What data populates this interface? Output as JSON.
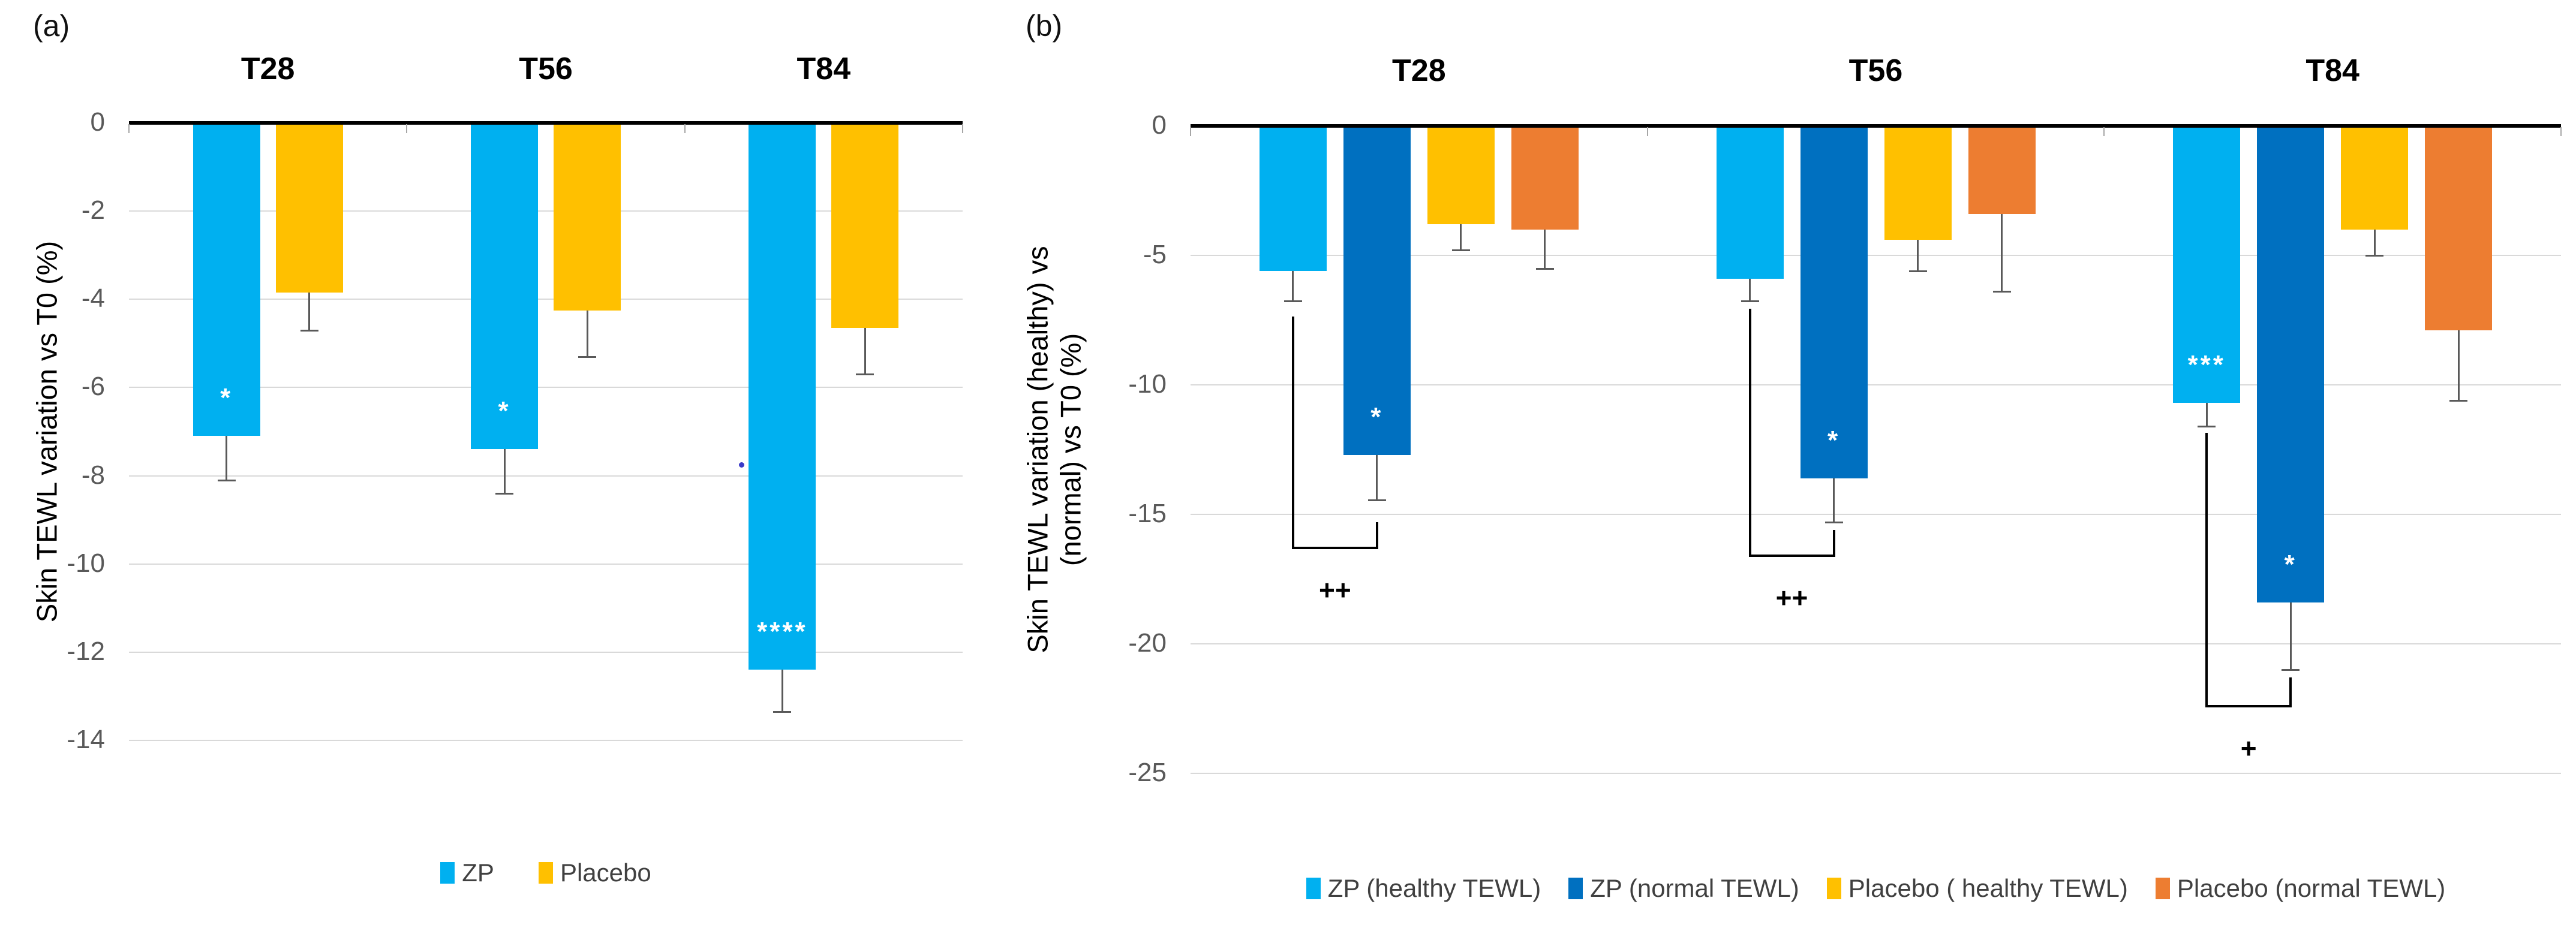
{
  "chart_data": [
    {
      "panel_label": "(a)",
      "type": "bar",
      "title": "",
      "ylabel_lines": [
        "Skin TEWL variation vs T0 (%)",
        ""
      ],
      "xlabel": "",
      "ylim": [
        0,
        -14
      ],
      "grid": true,
      "legend_position": "bottom",
      "yticks": [
        {
          "label": "0",
          "value": 0
        },
        {
          "label": "-2",
          "value": -2
        },
        {
          "label": "-4",
          "value": -4
        },
        {
          "label": "-6",
          "value": -6
        },
        {
          "label": "-8",
          "value": -8
        },
        {
          "label": "-10",
          "value": -10
        },
        {
          "label": "-12",
          "value": -12
        },
        {
          "label": "-14",
          "value": -14
        }
      ],
      "categories": [
        "T28",
        "T56",
        "T84"
      ],
      "series": [
        {
          "name": "ZP",
          "color": "#00B0F0",
          "values": [
            -7.1,
            -7.4,
            -12.4
          ],
          "errors": [
            1.0,
            1.0,
            0.95
          ],
          "sig": [
            "*",
            "*",
            "****"
          ]
        },
        {
          "name": "Placebo",
          "color": "#FFC000",
          "values": [
            -3.85,
            -4.25,
            -4.65
          ],
          "errors": [
            0.85,
            1.05,
            1.05
          ],
          "sig": [
            "",
            "",
            ""
          ]
        }
      ],
      "brackets": [],
      "stray_dot": {
        "category_index": 2,
        "value": -7.75
      },
      "colors": {
        "gridline": "#D9D9D9",
        "axis": "#000000",
        "error_bar": "#595959",
        "tick_text": "#595959",
        "sig_text": "#FFFFFF"
      }
    },
    {
      "panel_label": "(b)",
      "type": "bar",
      "title": "",
      "ylabel_lines": [
        "Skin TEWL variation (healthy) vs",
        "(normal) vs T0 (%)"
      ],
      "xlabel": "",
      "ylim": [
        0,
        -25
      ],
      "grid": true,
      "legend_position": "bottom",
      "yticks": [
        {
          "label": "0",
          "value": 0
        },
        {
          "label": "-5",
          "value": -5
        },
        {
          "label": "-10",
          "value": -10
        },
        {
          "label": "-15",
          "value": -15
        },
        {
          "label": "-20",
          "value": -20
        },
        {
          "label": "-25",
          "value": -25
        }
      ],
      "categories": [
        "T28",
        "T56",
        "T84"
      ],
      "series": [
        {
          "name": "ZP (healthy TEWL)",
          "color": "#00B0F0",
          "values": [
            -5.6,
            -5.9,
            -10.7
          ],
          "errors": [
            1.15,
            0.85,
            0.9
          ],
          "sig": [
            "",
            "",
            "***"
          ]
        },
        {
          "name": "ZP (normal TEWL)",
          "color": "#0070C0",
          "values": [
            -12.7,
            -13.6,
            -18.4
          ],
          "errors": [
            1.75,
            1.7,
            2.6
          ],
          "sig": [
            "*",
            "*",
            "*"
          ]
        },
        {
          "name": "Placebo ( healthy TEWL)",
          "color": "#FFC000",
          "values": [
            -3.8,
            -4.4,
            -4.0
          ],
          "errors": [
            1.0,
            1.2,
            1.0
          ],
          "sig": [
            "",
            "",
            ""
          ]
        },
        {
          "name": "Placebo (normal TEWL)",
          "color": "#ED7D31",
          "values": [
            -4.0,
            -3.4,
            -7.9
          ],
          "errors": [
            1.5,
            3.0,
            2.7
          ],
          "sig": [
            "",
            "",
            ""
          ]
        }
      ],
      "brackets": [
        {
          "category_index": 0,
          "from_series": 0,
          "to_series": 1,
          "from_value": -7.35,
          "to_value": -15.3,
          "bottom_value": -16.35,
          "label": "++",
          "label_value": -17.9
        },
        {
          "category_index": 1,
          "from_series": 0,
          "to_series": 1,
          "from_value": -7.05,
          "to_value": -15.6,
          "bottom_value": -16.65,
          "label": "++",
          "label_value": -18.2
        },
        {
          "category_index": 2,
          "from_series": 0,
          "to_series": 1,
          "from_value": -11.85,
          "to_value": -21.3,
          "bottom_value": -22.45,
          "label": "+",
          "label_value": -24.0
        }
      ],
      "stray_dot": null,
      "colors": {
        "gridline": "#D9D9D9",
        "axis": "#000000",
        "error_bar": "#595959",
        "tick_text": "#595959",
        "sig_text": "#FFFFFF"
      }
    }
  ]
}
